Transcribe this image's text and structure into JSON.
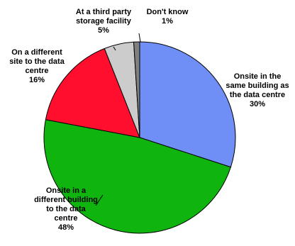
{
  "chart_data": {
    "type": "pie",
    "title": "",
    "legend": "none",
    "slices": [
      {
        "label_lines": [
          "Onsite in the",
          "same building as",
          "the data centre"
        ],
        "value": 30,
        "value_label": "30%",
        "color": "#6f8ff7"
      },
      {
        "label_lines": [
          "Onsite in a",
          "different building",
          "to the data",
          "centre"
        ],
        "value": 48,
        "value_label": "48%",
        "color": "#0fb40f"
      },
      {
        "label_lines": [
          "On a different",
          "site to the data",
          "centre"
        ],
        "value": 16,
        "value_label": "16%",
        "color": "#ff0e2e"
      },
      {
        "label_lines": [
          "At a third party",
          "storage facility"
        ],
        "value": 5,
        "value_label": "5%",
        "color": "#cccccc"
      },
      {
        "label_lines": [
          "Don't know"
        ],
        "value": 1,
        "value_label": "1%",
        "color": "#808080"
      }
    ]
  }
}
